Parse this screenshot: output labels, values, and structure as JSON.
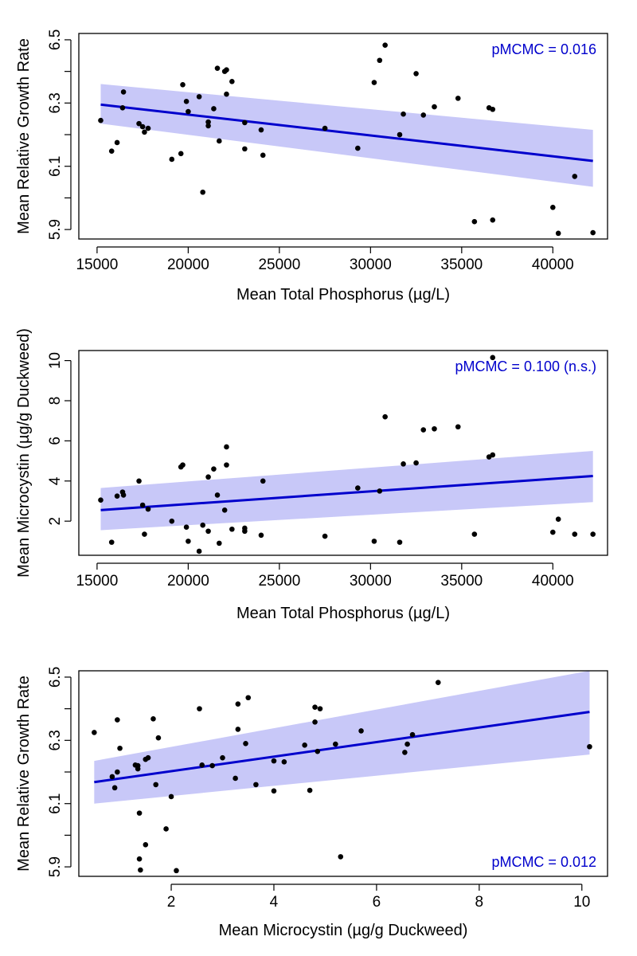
{
  "colors": {
    "line": "#0000cc",
    "band": "#c8c8f8",
    "point": "#000000",
    "annotation": "#0000cc",
    "axis": "#000000"
  },
  "chart_data": [
    {
      "type": "scatter",
      "title": "",
      "xlabel": "Mean Total Phosphorus (µg/L)",
      "ylabel": "Mean Relative Growth Rate",
      "xlim": [
        14000,
        43000
      ],
      "ylim": [
        5.87,
        6.52
      ],
      "xticks": [
        15000,
        20000,
        25000,
        30000,
        35000,
        40000
      ],
      "yticks": [
        5.9,
        6.1,
        6.3,
        6.5
      ],
      "yticks_minor": [
        6.0,
        6.2,
        6.4
      ],
      "annotation": "pMCMC = 0.016",
      "annotation_position": "top-right",
      "fit_line": {
        "x": [
          15200,
          42200
        ],
        "y": [
          6.295,
          6.117
        ]
      },
      "ci_band": {
        "x": [
          15200,
          42200
        ],
        "lower": [
          6.235,
          6.035
        ],
        "upper": [
          6.36,
          6.215
        ]
      },
      "points": [
        [
          15200,
          6.245
        ],
        [
          15800,
          6.148
        ],
        [
          16100,
          6.175
        ],
        [
          16400,
          6.285
        ],
        [
          16450,
          6.335
        ],
        [
          17300,
          6.235
        ],
        [
          17500,
          6.225
        ],
        [
          17600,
          6.208
        ],
        [
          17800,
          6.22
        ],
        [
          19100,
          6.122
        ],
        [
          19600,
          6.14
        ],
        [
          19700,
          6.358
        ],
        [
          19900,
          6.305
        ],
        [
          20000,
          6.273
        ],
        [
          20600,
          6.32
        ],
        [
          20800,
          6.018
        ],
        [
          21100,
          6.24
        ],
        [
          21100,
          6.228
        ],
        [
          21400,
          6.282
        ],
        [
          21600,
          6.41
        ],
        [
          21700,
          6.18
        ],
        [
          22000,
          6.4
        ],
        [
          22100,
          6.405
        ],
        [
          22100,
          6.328
        ],
        [
          22400,
          6.368
        ],
        [
          23100,
          6.238
        ],
        [
          23100,
          6.155
        ],
        [
          24000,
          6.215
        ],
        [
          24100,
          6.135
        ],
        [
          27500,
          6.22
        ],
        [
          29300,
          6.157
        ],
        [
          30200,
          6.365
        ],
        [
          30500,
          6.435
        ],
        [
          30800,
          6.483
        ],
        [
          31600,
          6.2
        ],
        [
          31800,
          6.265
        ],
        [
          32500,
          6.393
        ],
        [
          32900,
          6.262
        ],
        [
          33500,
          6.288
        ],
        [
          34800,
          6.315
        ],
        [
          35700,
          5.925
        ],
        [
          36500,
          6.285
        ],
        [
          36700,
          6.28
        ],
        [
          36700,
          5.93
        ],
        [
          40000,
          5.97
        ],
        [
          40300,
          5.888
        ],
        [
          41200,
          6.068
        ],
        [
          42200,
          5.89
        ]
      ]
    },
    {
      "type": "scatter",
      "title": "",
      "xlabel": "Mean Total Phosphorus (µg/L)",
      "ylabel": "Mean Microcystin (µg/g Duckweed)",
      "xlim": [
        14000,
        43000
      ],
      "ylim": [
        0.3,
        10.5
      ],
      "xticks": [
        15000,
        20000,
        25000,
        30000,
        35000,
        40000
      ],
      "yticks": [
        2,
        4,
        6,
        8,
        10
      ],
      "yticks_minor": [],
      "annotation": "pMCMC = 0.100 (n.s.)",
      "annotation_position": "top-right",
      "fit_line": {
        "x": [
          15200,
          42200
        ],
        "y": [
          2.55,
          4.25
        ]
      },
      "ci_band": {
        "x": [
          15200,
          42200
        ],
        "lower": [
          1.55,
          2.95
        ],
        "upper": [
          3.65,
          5.5
        ]
      },
      "points": [
        [
          15200,
          3.05
        ],
        [
          15800,
          0.95
        ],
        [
          16100,
          3.25
        ],
        [
          16400,
          3.45
        ],
        [
          16450,
          3.3
        ],
        [
          17300,
          4.0
        ],
        [
          17500,
          2.8
        ],
        [
          17600,
          1.35
        ],
        [
          17800,
          2.6
        ],
        [
          19100,
          2.0
        ],
        [
          19600,
          4.7
        ],
        [
          19700,
          4.8
        ],
        [
          19900,
          1.7
        ],
        [
          20000,
          1.0
        ],
        [
          20600,
          0.5
        ],
        [
          20800,
          1.8
        ],
        [
          21100,
          1.5
        ],
        [
          21100,
          4.2
        ],
        [
          21400,
          4.6
        ],
        [
          21600,
          3.3
        ],
        [
          21700,
          0.9
        ],
        [
          22000,
          2.55
        ],
        [
          22100,
          4.8
        ],
        [
          22100,
          5.7
        ],
        [
          22400,
          1.6
        ],
        [
          23100,
          1.65
        ],
        [
          23100,
          1.5
        ],
        [
          24000,
          1.3
        ],
        [
          24100,
          4.0
        ],
        [
          27500,
          1.25
        ],
        [
          29300,
          3.65
        ],
        [
          30200,
          1.0
        ],
        [
          30500,
          3.5
        ],
        [
          30800,
          7.2
        ],
        [
          31600,
          0.95
        ],
        [
          31800,
          4.85
        ],
        [
          32500,
          4.9
        ],
        [
          32900,
          6.55
        ],
        [
          33500,
          6.6
        ],
        [
          34800,
          6.7
        ],
        [
          35700,
          1.35
        ],
        [
          36500,
          5.2
        ],
        [
          36700,
          5.3
        ],
        [
          36700,
          10.15
        ],
        [
          40000,
          1.45
        ],
        [
          40300,
          2.1
        ],
        [
          41200,
          1.35
        ],
        [
          42200,
          1.35
        ]
      ]
    },
    {
      "type": "scatter",
      "title": "",
      "xlabel": "Mean Microcystin (µg/g Duckweed)",
      "ylabel": "Mean Relative Growth Rate",
      "xlim": [
        0.2,
        10.5
      ],
      "ylim": [
        5.87,
        6.52
      ],
      "xticks": [
        2,
        4,
        6,
        8,
        10
      ],
      "yticks": [
        5.9,
        6.1,
        6.3,
        6.5
      ],
      "yticks_minor": [
        6.0,
        6.2,
        6.4
      ],
      "annotation": "pMCMC = 0.012",
      "annotation_position": "bottom-right",
      "fit_line": {
        "x": [
          0.5,
          10.15
        ],
        "y": [
          6.168,
          6.39
        ]
      },
      "ci_band": {
        "x": [
          0.5,
          10.15
        ],
        "lower": [
          6.1,
          6.255
        ],
        "upper": [
          6.235,
          6.52
        ]
      },
      "points": [
        [
          0.5,
          6.325
        ],
        [
          0.85,
          6.185
        ],
        [
          0.9,
          6.15
        ],
        [
          0.95,
          6.2
        ],
        [
          0.95,
          6.365
        ],
        [
          1.0,
          6.275
        ],
        [
          1.3,
          6.222
        ],
        [
          1.35,
          6.22
        ],
        [
          1.35,
          6.21
        ],
        [
          1.38,
          6.07
        ],
        [
          1.38,
          5.925
        ],
        [
          1.4,
          5.89
        ],
        [
          1.5,
          6.24
        ],
        [
          1.5,
          5.97
        ],
        [
          1.55,
          6.245
        ],
        [
          1.65,
          6.368
        ],
        [
          1.7,
          6.16
        ],
        [
          1.75,
          6.308
        ],
        [
          1.9,
          6.02
        ],
        [
          2.0,
          6.122
        ],
        [
          2.1,
          5.888
        ],
        [
          2.55,
          6.4
        ],
        [
          2.6,
          6.222
        ],
        [
          2.8,
          6.22
        ],
        [
          3.0,
          6.245
        ],
        [
          3.25,
          6.18
        ],
        [
          3.3,
          6.415
        ],
        [
          3.3,
          6.335
        ],
        [
          3.45,
          6.29
        ],
        [
          3.5,
          6.435
        ],
        [
          3.65,
          6.16
        ],
        [
          4.0,
          6.235
        ],
        [
          4.0,
          6.14
        ],
        [
          4.2,
          6.232
        ],
        [
          4.6,
          6.285
        ],
        [
          4.7,
          6.142
        ],
        [
          4.8,
          6.405
        ],
        [
          4.8,
          6.358
        ],
        [
          4.85,
          6.265
        ],
        [
          4.9,
          6.4
        ],
        [
          5.2,
          6.288
        ],
        [
          5.3,
          5.932
        ],
        [
          5.7,
          6.33
        ],
        [
          6.55,
          6.262
        ],
        [
          6.6,
          6.288
        ],
        [
          6.7,
          6.318
        ],
        [
          7.2,
          6.483
        ],
        [
          10.15,
          6.28
        ]
      ]
    }
  ]
}
